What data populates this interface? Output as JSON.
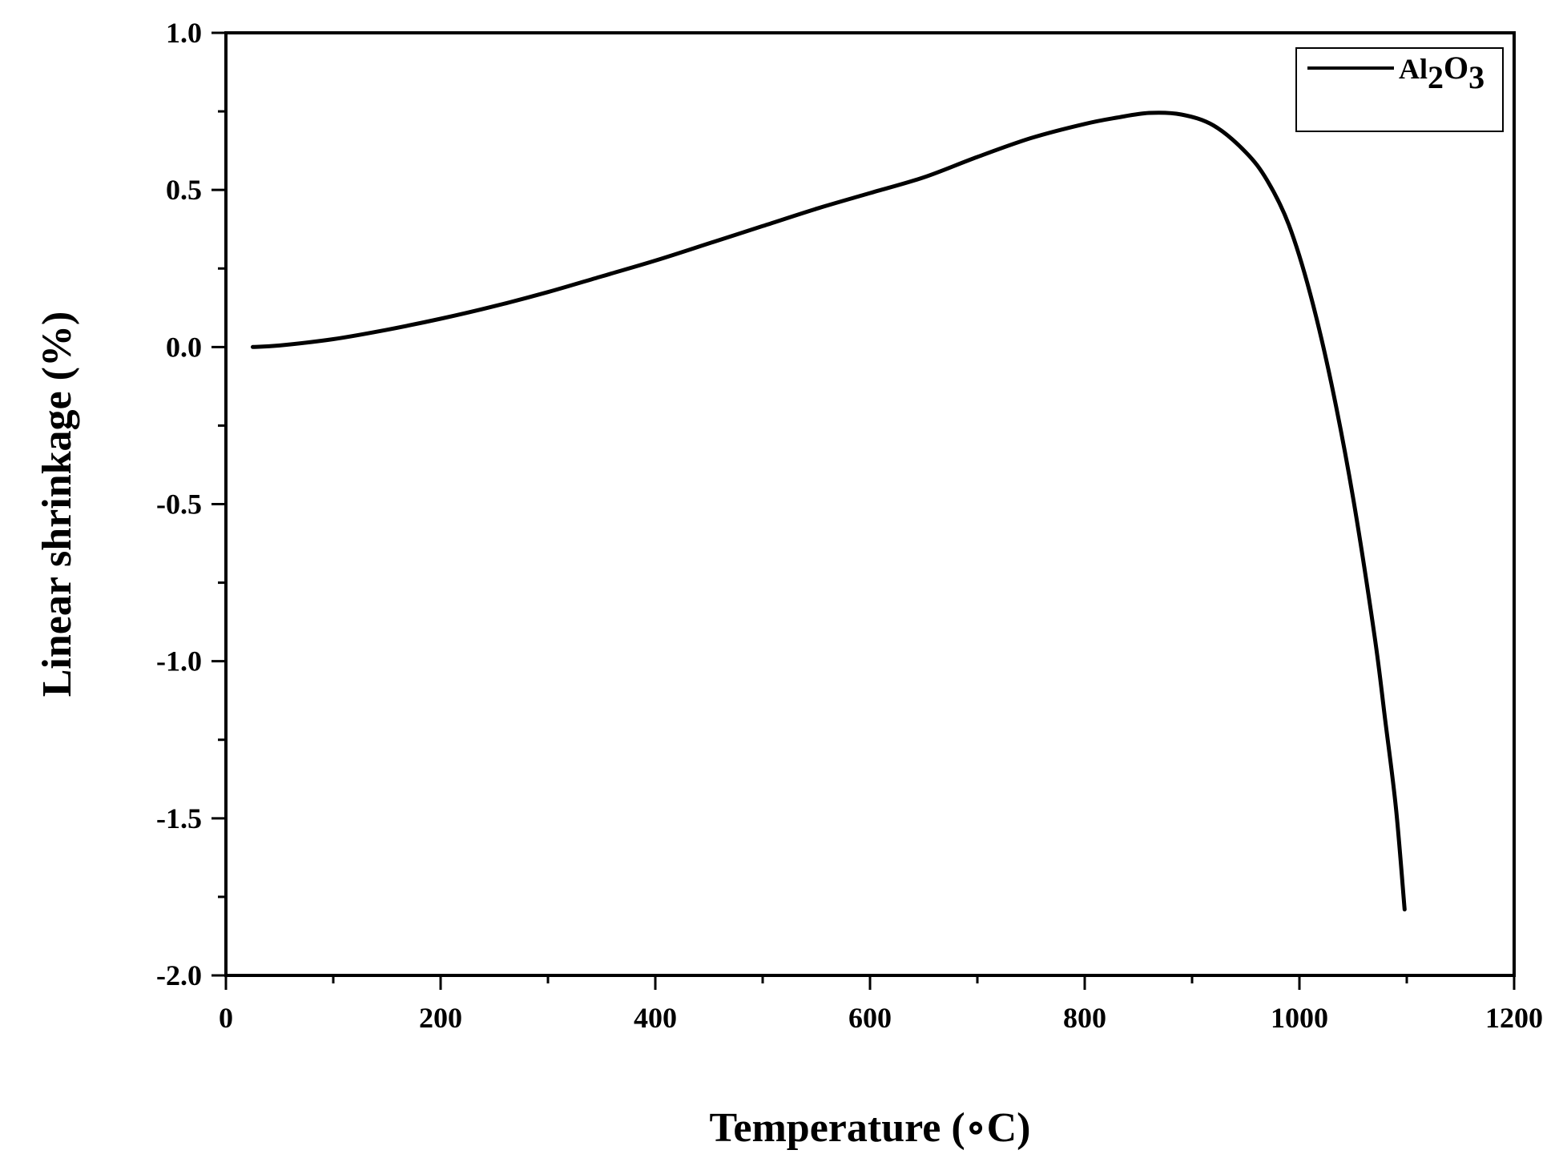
{
  "chart_data": {
    "type": "line",
    "xlabel": "Temperature (∘C)",
    "ylabel": "Linear shrinkage (%)",
    "xlim": [
      0,
      1200
    ],
    "ylim": [
      -2.0,
      1.0
    ],
    "x_ticks": [
      "0",
      "200",
      "400",
      "600",
      "800",
      "1000",
      "1200"
    ],
    "y_ticks": [
      "1.0",
      "0.5",
      "0.0",
      "-0.5",
      "-1.0",
      "-1.5",
      "-2.0"
    ],
    "grid": false,
    "legend_position": "top-right",
    "series": [
      {
        "name": "Al2O3",
        "legend_parts": [
          "Al",
          "2",
          "O",
          "3"
        ],
        "color": "#000000",
        "x": [
          25,
          50,
          100,
          150,
          200,
          250,
          300,
          350,
          400,
          450,
          500,
          550,
          600,
          650,
          700,
          750,
          800,
          830,
          860,
          890,
          920,
          950,
          970,
          990,
          1010,
          1030,
          1050,
          1070,
          1080,
          1090,
          1098
        ],
        "y": [
          0.0,
          0.005,
          0.025,
          0.055,
          0.09,
          0.13,
          0.175,
          0.225,
          0.275,
          0.33,
          0.385,
          0.44,
          0.49,
          0.54,
          0.605,
          0.665,
          0.71,
          0.73,
          0.745,
          0.74,
          0.705,
          0.62,
          0.53,
          0.39,
          0.17,
          -0.12,
          -0.48,
          -0.92,
          -1.19,
          -1.47,
          -1.79
        ]
      }
    ]
  }
}
